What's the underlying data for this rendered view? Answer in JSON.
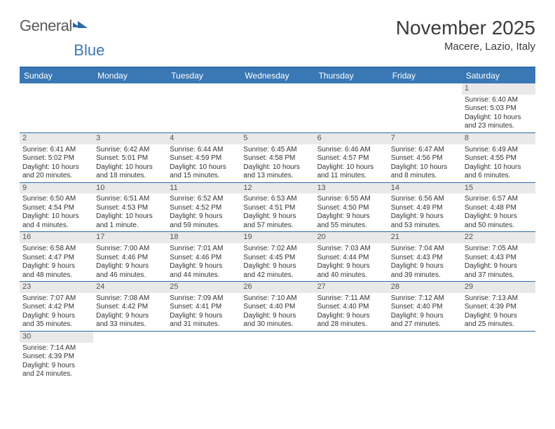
{
  "logo": {
    "text_general": "General",
    "text_blue": "Blue"
  },
  "title": "November 2025",
  "location": "Macere, Lazio, Italy",
  "colors": {
    "header_bar": "#3a78b5",
    "header_border": "#2e6aa8",
    "daynum_bg": "#e9e9e9",
    "text": "#333333",
    "background": "#ffffff"
  },
  "weekdays": [
    "Sunday",
    "Monday",
    "Tuesday",
    "Wednesday",
    "Thursday",
    "Friday",
    "Saturday"
  ],
  "weeks": [
    [
      {
        "n": "",
        "sunrise": "",
        "sunset": "",
        "daylight1": "",
        "daylight2": ""
      },
      {
        "n": "",
        "sunrise": "",
        "sunset": "",
        "daylight1": "",
        "daylight2": ""
      },
      {
        "n": "",
        "sunrise": "",
        "sunset": "",
        "daylight1": "",
        "daylight2": ""
      },
      {
        "n": "",
        "sunrise": "",
        "sunset": "",
        "daylight1": "",
        "daylight2": ""
      },
      {
        "n": "",
        "sunrise": "",
        "sunset": "",
        "daylight1": "",
        "daylight2": ""
      },
      {
        "n": "",
        "sunrise": "",
        "sunset": "",
        "daylight1": "",
        "daylight2": ""
      },
      {
        "n": "1",
        "sunrise": "Sunrise: 6:40 AM",
        "sunset": "Sunset: 5:03 PM",
        "daylight1": "Daylight: 10 hours",
        "daylight2": "and 23 minutes."
      }
    ],
    [
      {
        "n": "2",
        "sunrise": "Sunrise: 6:41 AM",
        "sunset": "Sunset: 5:02 PM",
        "daylight1": "Daylight: 10 hours",
        "daylight2": "and 20 minutes."
      },
      {
        "n": "3",
        "sunrise": "Sunrise: 6:42 AM",
        "sunset": "Sunset: 5:01 PM",
        "daylight1": "Daylight: 10 hours",
        "daylight2": "and 18 minutes."
      },
      {
        "n": "4",
        "sunrise": "Sunrise: 6:44 AM",
        "sunset": "Sunset: 4:59 PM",
        "daylight1": "Daylight: 10 hours",
        "daylight2": "and 15 minutes."
      },
      {
        "n": "5",
        "sunrise": "Sunrise: 6:45 AM",
        "sunset": "Sunset: 4:58 PM",
        "daylight1": "Daylight: 10 hours",
        "daylight2": "and 13 minutes."
      },
      {
        "n": "6",
        "sunrise": "Sunrise: 6:46 AM",
        "sunset": "Sunset: 4:57 PM",
        "daylight1": "Daylight: 10 hours",
        "daylight2": "and 11 minutes."
      },
      {
        "n": "7",
        "sunrise": "Sunrise: 6:47 AM",
        "sunset": "Sunset: 4:56 PM",
        "daylight1": "Daylight: 10 hours",
        "daylight2": "and 8 minutes."
      },
      {
        "n": "8",
        "sunrise": "Sunrise: 6:49 AM",
        "sunset": "Sunset: 4:55 PM",
        "daylight1": "Daylight: 10 hours",
        "daylight2": "and 6 minutes."
      }
    ],
    [
      {
        "n": "9",
        "sunrise": "Sunrise: 6:50 AM",
        "sunset": "Sunset: 4:54 PM",
        "daylight1": "Daylight: 10 hours",
        "daylight2": "and 4 minutes."
      },
      {
        "n": "10",
        "sunrise": "Sunrise: 6:51 AM",
        "sunset": "Sunset: 4:53 PM",
        "daylight1": "Daylight: 10 hours",
        "daylight2": "and 1 minute."
      },
      {
        "n": "11",
        "sunrise": "Sunrise: 6:52 AM",
        "sunset": "Sunset: 4:52 PM",
        "daylight1": "Daylight: 9 hours",
        "daylight2": "and 59 minutes."
      },
      {
        "n": "12",
        "sunrise": "Sunrise: 6:53 AM",
        "sunset": "Sunset: 4:51 PM",
        "daylight1": "Daylight: 9 hours",
        "daylight2": "and 57 minutes."
      },
      {
        "n": "13",
        "sunrise": "Sunrise: 6:55 AM",
        "sunset": "Sunset: 4:50 PM",
        "daylight1": "Daylight: 9 hours",
        "daylight2": "and 55 minutes."
      },
      {
        "n": "14",
        "sunrise": "Sunrise: 6:56 AM",
        "sunset": "Sunset: 4:49 PM",
        "daylight1": "Daylight: 9 hours",
        "daylight2": "and 53 minutes."
      },
      {
        "n": "15",
        "sunrise": "Sunrise: 6:57 AM",
        "sunset": "Sunset: 4:48 PM",
        "daylight1": "Daylight: 9 hours",
        "daylight2": "and 50 minutes."
      }
    ],
    [
      {
        "n": "16",
        "sunrise": "Sunrise: 6:58 AM",
        "sunset": "Sunset: 4:47 PM",
        "daylight1": "Daylight: 9 hours",
        "daylight2": "and 48 minutes."
      },
      {
        "n": "17",
        "sunrise": "Sunrise: 7:00 AM",
        "sunset": "Sunset: 4:46 PM",
        "daylight1": "Daylight: 9 hours",
        "daylight2": "and 46 minutes."
      },
      {
        "n": "18",
        "sunrise": "Sunrise: 7:01 AM",
        "sunset": "Sunset: 4:46 PM",
        "daylight1": "Daylight: 9 hours",
        "daylight2": "and 44 minutes."
      },
      {
        "n": "19",
        "sunrise": "Sunrise: 7:02 AM",
        "sunset": "Sunset: 4:45 PM",
        "daylight1": "Daylight: 9 hours",
        "daylight2": "and 42 minutes."
      },
      {
        "n": "20",
        "sunrise": "Sunrise: 7:03 AM",
        "sunset": "Sunset: 4:44 PM",
        "daylight1": "Daylight: 9 hours",
        "daylight2": "and 40 minutes."
      },
      {
        "n": "21",
        "sunrise": "Sunrise: 7:04 AM",
        "sunset": "Sunset: 4:43 PM",
        "daylight1": "Daylight: 9 hours",
        "daylight2": "and 39 minutes."
      },
      {
        "n": "22",
        "sunrise": "Sunrise: 7:05 AM",
        "sunset": "Sunset: 4:43 PM",
        "daylight1": "Daylight: 9 hours",
        "daylight2": "and 37 minutes."
      }
    ],
    [
      {
        "n": "23",
        "sunrise": "Sunrise: 7:07 AM",
        "sunset": "Sunset: 4:42 PM",
        "daylight1": "Daylight: 9 hours",
        "daylight2": "and 35 minutes."
      },
      {
        "n": "24",
        "sunrise": "Sunrise: 7:08 AM",
        "sunset": "Sunset: 4:42 PM",
        "daylight1": "Daylight: 9 hours",
        "daylight2": "and 33 minutes."
      },
      {
        "n": "25",
        "sunrise": "Sunrise: 7:09 AM",
        "sunset": "Sunset: 4:41 PM",
        "daylight1": "Daylight: 9 hours",
        "daylight2": "and 31 minutes."
      },
      {
        "n": "26",
        "sunrise": "Sunrise: 7:10 AM",
        "sunset": "Sunset: 4:40 PM",
        "daylight1": "Daylight: 9 hours",
        "daylight2": "and 30 minutes."
      },
      {
        "n": "27",
        "sunrise": "Sunrise: 7:11 AM",
        "sunset": "Sunset: 4:40 PM",
        "daylight1": "Daylight: 9 hours",
        "daylight2": "and 28 minutes."
      },
      {
        "n": "28",
        "sunrise": "Sunrise: 7:12 AM",
        "sunset": "Sunset: 4:40 PM",
        "daylight1": "Daylight: 9 hours",
        "daylight2": "and 27 minutes."
      },
      {
        "n": "29",
        "sunrise": "Sunrise: 7:13 AM",
        "sunset": "Sunset: 4:39 PM",
        "daylight1": "Daylight: 9 hours",
        "daylight2": "and 25 minutes."
      }
    ],
    [
      {
        "n": "30",
        "sunrise": "Sunrise: 7:14 AM",
        "sunset": "Sunset: 4:39 PM",
        "daylight1": "Daylight: 9 hours",
        "daylight2": "and 24 minutes."
      },
      {
        "n": "",
        "sunrise": "",
        "sunset": "",
        "daylight1": "",
        "daylight2": ""
      },
      {
        "n": "",
        "sunrise": "",
        "sunset": "",
        "daylight1": "",
        "daylight2": ""
      },
      {
        "n": "",
        "sunrise": "",
        "sunset": "",
        "daylight1": "",
        "daylight2": ""
      },
      {
        "n": "",
        "sunrise": "",
        "sunset": "",
        "daylight1": "",
        "daylight2": ""
      },
      {
        "n": "",
        "sunrise": "",
        "sunset": "",
        "daylight1": "",
        "daylight2": ""
      },
      {
        "n": "",
        "sunrise": "",
        "sunset": "",
        "daylight1": "",
        "daylight2": ""
      }
    ]
  ]
}
